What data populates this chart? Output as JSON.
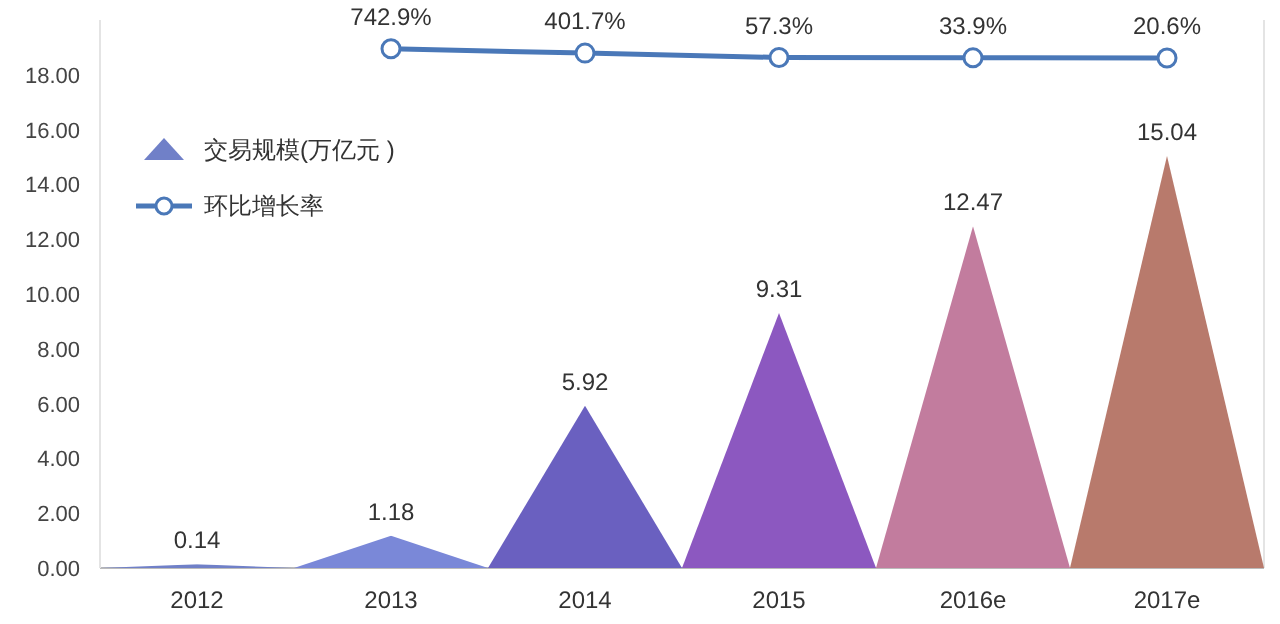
{
  "chart_data": {
    "type": "bar",
    "categories": [
      "2012",
      "2013",
      "2014",
      "2015",
      "2016e",
      "2017e"
    ],
    "ylim": [
      0,
      20
    ],
    "yticks": [
      {
        "value": 0,
        "label": "0.00"
      },
      {
        "value": 2,
        "label": "2.00"
      },
      {
        "value": 4,
        "label": "4.00"
      },
      {
        "value": 6,
        "label": "6.00"
      },
      {
        "value": 8,
        "label": "8.00"
      },
      {
        "value": 10,
        "label": "10.00"
      },
      {
        "value": 12,
        "label": "12.00"
      },
      {
        "value": 14,
        "label": "14.00"
      },
      {
        "value": 16,
        "label": "16.00"
      },
      {
        "value": 18,
        "label": "18.00"
      }
    ],
    "y2lim": [
      -40000,
      3000
    ],
    "series": [
      {
        "name": "交易规模(万亿元 )",
        "colors": [
          "#7080c8",
          "#7a88d8",
          "#6a60c0",
          "#8c58c0",
          "#c27c9e",
          "#b87a6c"
        ],
        "values": [
          0.14,
          1.18,
          5.92,
          9.31,
          12.47,
          15.04
        ]
      },
      {
        "name": "环比增长率",
        "type": "line",
        "axis": "y2",
        "color": "#4a78b8",
        "marker": "circle",
        "values": [
          null,
          742.9,
          401.7,
          57.3,
          33.9,
          20.6
        ],
        "value_labels": [
          null,
          "742.9%",
          "401.7%",
          "57.3%",
          "33.9%",
          "20.6%"
        ]
      }
    ],
    "data_labels": true,
    "legend": "top left",
    "grid": false
  }
}
